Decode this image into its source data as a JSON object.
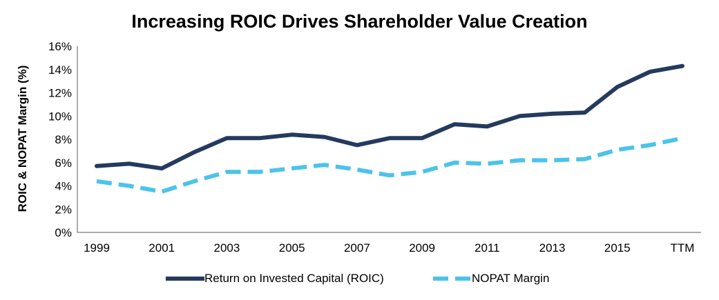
{
  "chart_data": {
    "type": "line",
    "title": "Increasing ROIC Drives Shareholder Value Creation",
    "ylabel": "ROIC & NOPAT Margin (%)",
    "xlabel": "",
    "ylim": [
      0,
      16
    ],
    "y_ticks": [
      "0%",
      "2%",
      "4%",
      "6%",
      "8%",
      "10%",
      "12%",
      "14%",
      "16%"
    ],
    "y_tick_values": [
      0,
      2,
      4,
      6,
      8,
      10,
      12,
      14,
      16
    ],
    "categories": [
      "1999",
      "2000",
      "2001",
      "2002",
      "2003",
      "2004",
      "2005",
      "2006",
      "2007",
      "2008",
      "2009",
      "2010",
      "2011",
      "2012",
      "2013",
      "2014",
      "2015",
      "2016",
      "TTM"
    ],
    "x_tick_labels": [
      "1999",
      "",
      "2001",
      "",
      "2003",
      "",
      "2005",
      "",
      "2007",
      "",
      "2009",
      "",
      "2011",
      "",
      "2013",
      "",
      "2015",
      "",
      "TTM"
    ],
    "grid": false,
    "legend_position": "bottom",
    "series": [
      {
        "name": "Return on Invested Capital (ROIC)",
        "color": "#243a5e",
        "style": "solid",
        "values": [
          5.7,
          5.9,
          5.5,
          6.9,
          8.1,
          8.1,
          8.4,
          8.2,
          7.5,
          8.1,
          8.1,
          9.3,
          9.1,
          10.0,
          10.2,
          10.3,
          12.5,
          13.8,
          14.3
        ]
      },
      {
        "name": "NOPAT Margin",
        "color": "#4cc3ea",
        "style": "dashed",
        "values": [
          4.4,
          4.0,
          3.5,
          4.4,
          5.2,
          5.2,
          5.5,
          5.8,
          5.4,
          4.9,
          5.2,
          6.0,
          5.9,
          6.2,
          6.2,
          6.3,
          7.1,
          7.5,
          8.1
        ]
      }
    ]
  }
}
